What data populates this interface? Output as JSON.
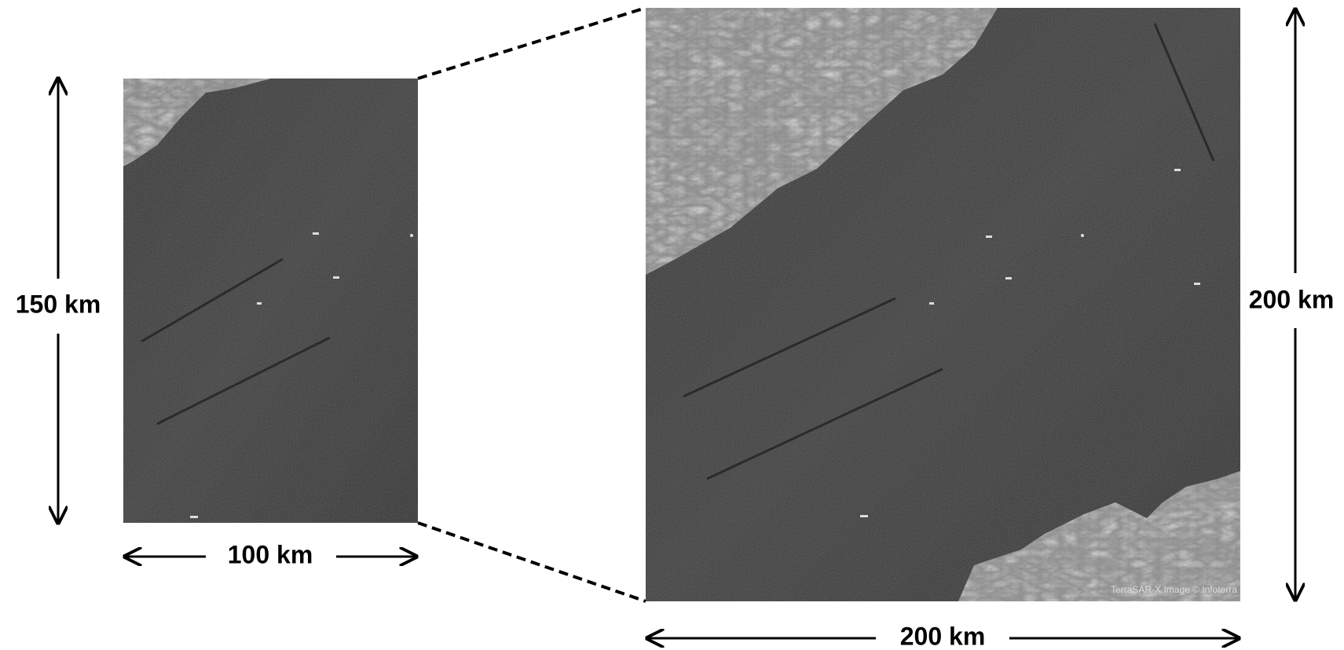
{
  "left_image": {
    "height_label": "150 km",
    "width_label": "100 km"
  },
  "right_image": {
    "height_label": "200 km",
    "width_label": "200 km",
    "credit": "TerraSAR-X Image © Infoterra"
  }
}
